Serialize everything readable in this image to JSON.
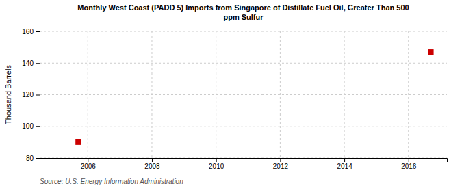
{
  "chart_data": {
    "type": "scatter",
    "title": "Monthly West Coast (PADD 5) Imports from Singapore of Distillate Fuel Oil, Greater Than 500\nppm Sulfur",
    "y_label": "Thousand Barrels",
    "annotations": [
      "Source: U.S. Energy Information Administration"
    ],
    "x": [
      2005.7,
      2016.7
    ],
    "values": [
      90,
      147
    ],
    "color": "#cc0000",
    "marker": "square",
    "xlim": [
      2004.5,
      2017.2
    ],
    "ylim": [
      80,
      160
    ],
    "xticks": [
      2006,
      2008,
      2010,
      2012,
      2014,
      2016
    ],
    "yticks": [
      80,
      100,
      120,
      140,
      160
    ],
    "grid": true
  }
}
